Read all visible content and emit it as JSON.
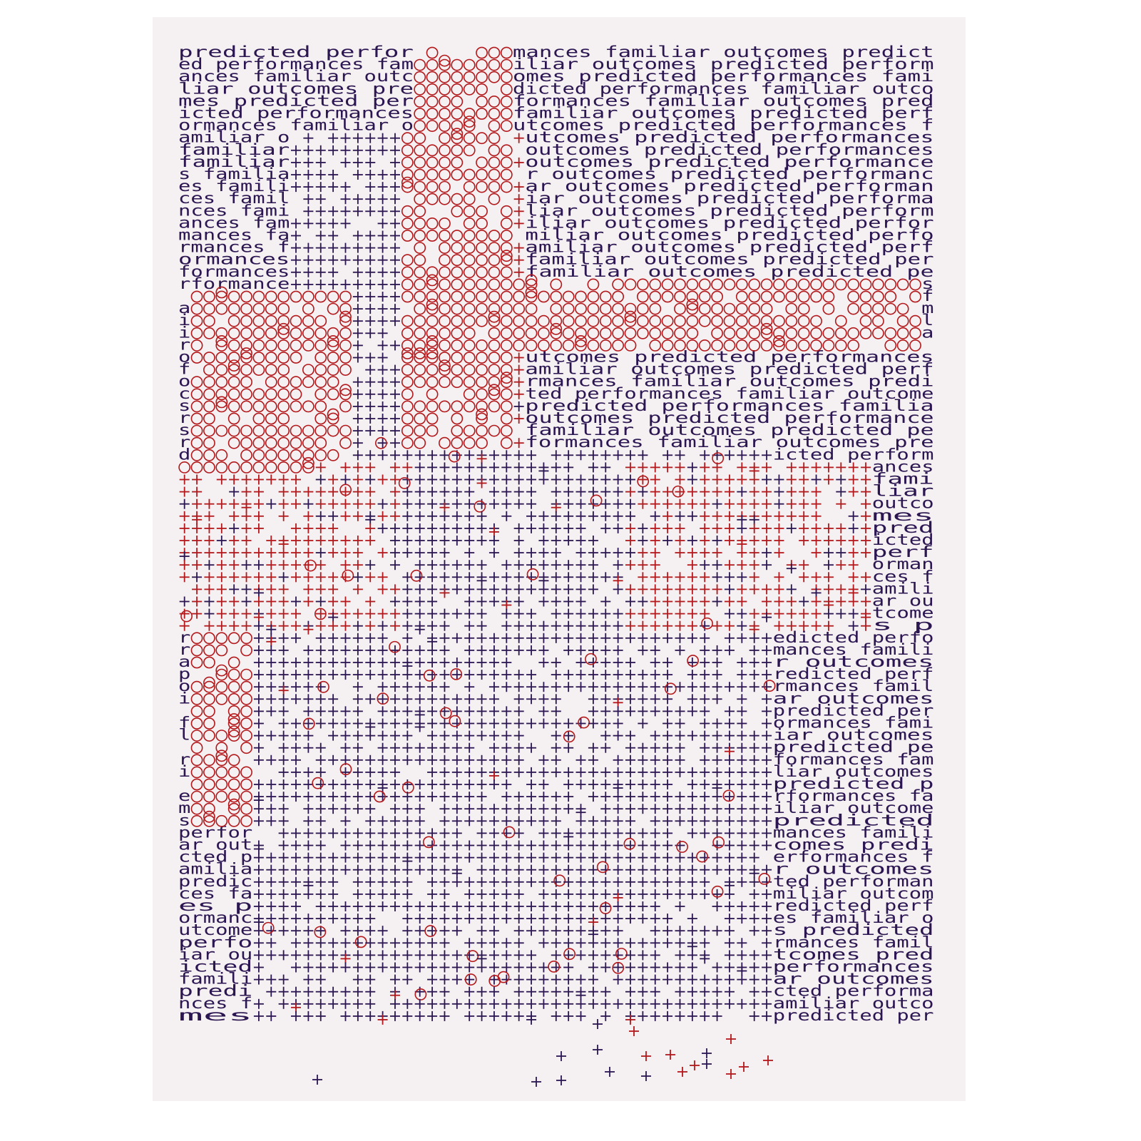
{
  "artwork": {
    "phrase": "predicted performances familiar outcomes",
    "phrase_separator": "   ",
    "colors": {
      "page": "#ffffff",
      "canvas": "#f5f0f1",
      "ink": "#2b1652",
      "accent": "#b3191c"
    },
    "marks": [
      "text",
      "circle",
      "plus"
    ]
  }
}
